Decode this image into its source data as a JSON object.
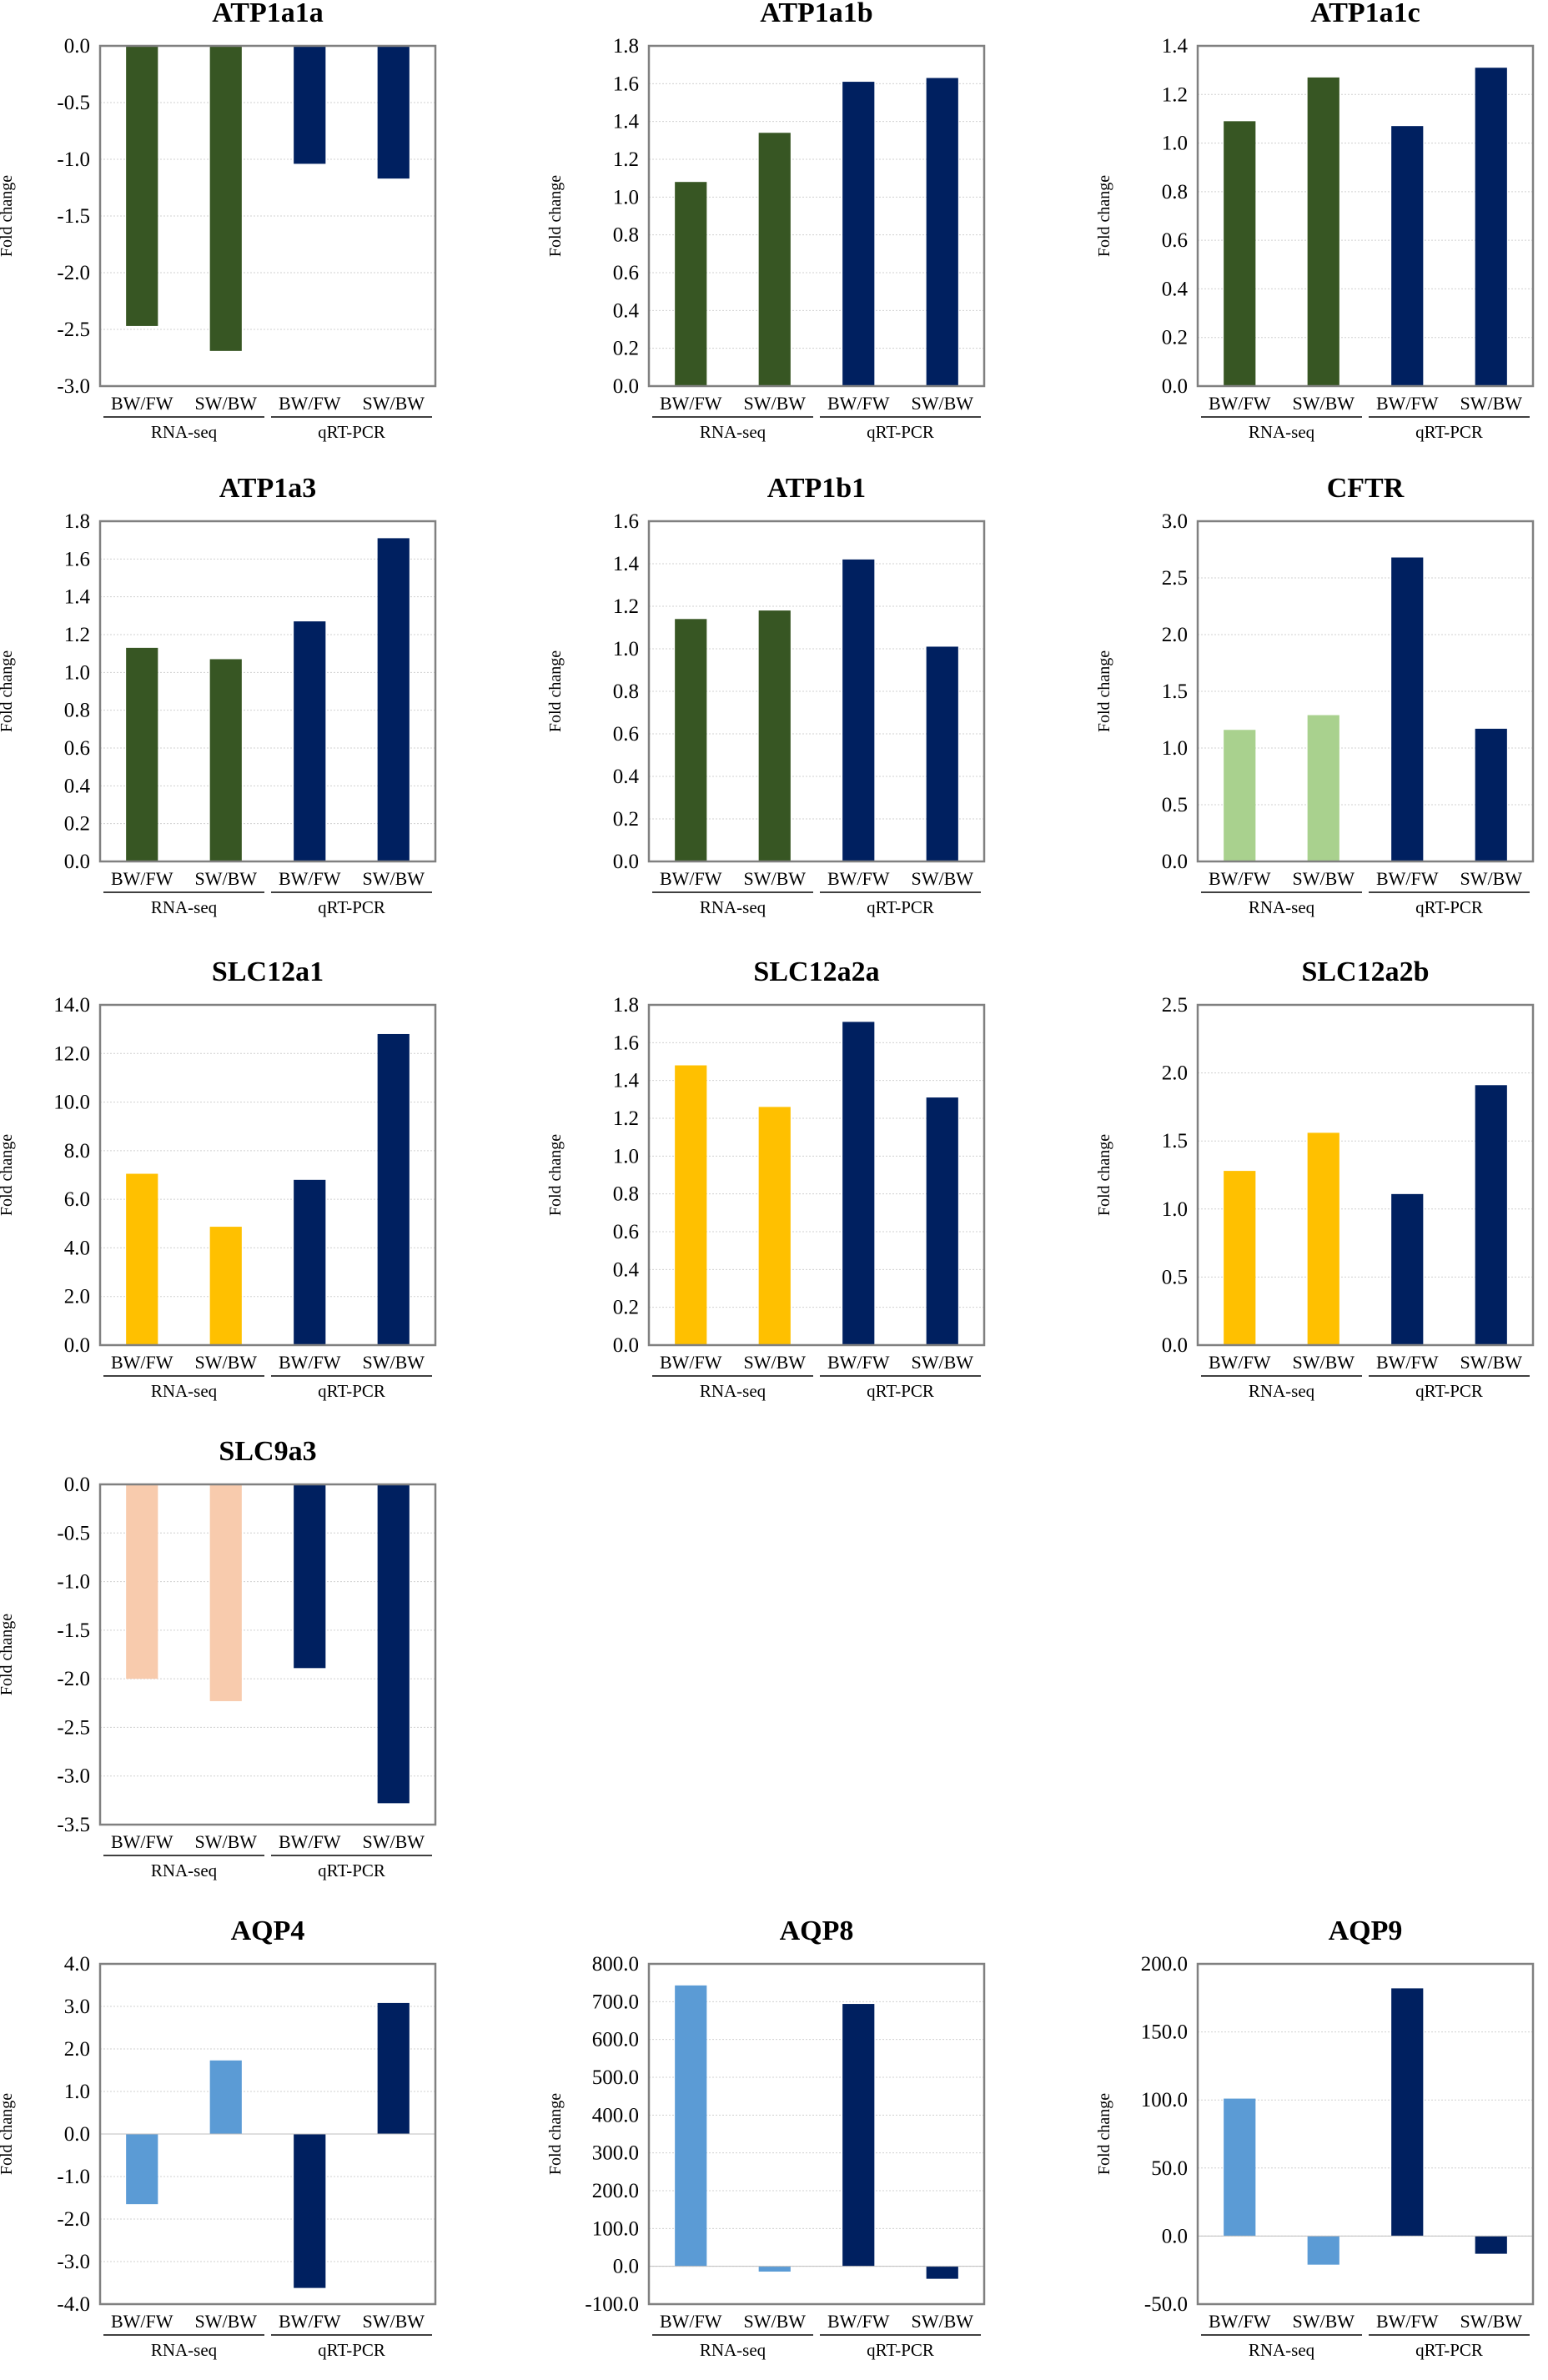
{
  "chart_data": [
    {
      "id": "ATP1a1a",
      "type": "bar",
      "title": "ATP1a1a",
      "ylabel": "Fold change",
      "ylim": [
        -3.0,
        0.0
      ],
      "step": 0.5,
      "decimals": 1,
      "categories": [
        "BW/FW",
        "SW/BW",
        "BW/FW",
        "SW/BW"
      ],
      "groups": [
        "RNA-seq",
        "qRT-PCR"
      ],
      "values": [
        -2.47,
        -2.69,
        -1.04,
        -1.17
      ],
      "colors": [
        "#375623",
        "#375623",
        "#002060",
        "#002060"
      ]
    },
    {
      "id": "ATP1a1b",
      "type": "bar",
      "title": "ATP1a1b",
      "ylabel": "Fold change",
      "ylim": [
        0.0,
        1.8
      ],
      "step": 0.2,
      "decimals": 1,
      "categories": [
        "BW/FW",
        "SW/BW",
        "BW/FW",
        "SW/BW"
      ],
      "groups": [
        "RNA-seq",
        "qRT-PCR"
      ],
      "values": [
        1.08,
        1.34,
        1.61,
        1.63
      ],
      "colors": [
        "#375623",
        "#375623",
        "#002060",
        "#002060"
      ]
    },
    {
      "id": "ATP1a1c",
      "type": "bar",
      "title": "ATP1a1c",
      "ylabel": "Fold change",
      "ylim": [
        0.0,
        1.4
      ],
      "step": 0.2,
      "decimals": 1,
      "categories": [
        "BW/FW",
        "SW/BW",
        "BW/FW",
        "SW/BW"
      ],
      "groups": [
        "RNA-seq",
        "qRT-PCR"
      ],
      "values": [
        1.09,
        1.27,
        1.07,
        1.31
      ],
      "colors": [
        "#375623",
        "#375623",
        "#002060",
        "#002060"
      ]
    },
    {
      "id": "ATP1a3",
      "type": "bar",
      "title": "ATP1a3",
      "ylabel": "Fold change",
      "ylim": [
        0.0,
        1.8
      ],
      "step": 0.2,
      "decimals": 1,
      "categories": [
        "BW/FW",
        "SW/BW",
        "BW/FW",
        "SW/BW"
      ],
      "groups": [
        "RNA-seq",
        "qRT-PCR"
      ],
      "values": [
        1.13,
        1.07,
        1.27,
        1.71
      ],
      "colors": [
        "#375623",
        "#375623",
        "#002060",
        "#002060"
      ]
    },
    {
      "id": "ATP1b1",
      "type": "bar",
      "title": "ATP1b1",
      "ylabel": "Fold change",
      "ylim": [
        0.0,
        1.6
      ],
      "step": 0.2,
      "decimals": 1,
      "categories": [
        "BW/FW",
        "SW/BW",
        "BW/FW",
        "SW/BW"
      ],
      "groups": [
        "RNA-seq",
        "qRT-PCR"
      ],
      "values": [
        1.14,
        1.18,
        1.42,
        1.01
      ],
      "colors": [
        "#375623",
        "#375623",
        "#002060",
        "#002060"
      ]
    },
    {
      "id": "CFTR",
      "type": "bar",
      "title": "CFTR",
      "ylabel": "Fold change",
      "ylim": [
        0.0,
        3.0
      ],
      "step": 0.5,
      "decimals": 1,
      "categories": [
        "BW/FW",
        "SW/BW",
        "BW/FW",
        "SW/BW"
      ],
      "groups": [
        "RNA-seq",
        "qRT-PCR"
      ],
      "values": [
        1.16,
        1.29,
        2.68,
        1.17
      ],
      "colors": [
        "#A9D18E",
        "#A9D18E",
        "#002060",
        "#002060"
      ]
    },
    {
      "id": "SLC12a1",
      "type": "bar",
      "title": "SLC12a1",
      "ylabel": "Fold change",
      "ylim": [
        0.0,
        14.0
      ],
      "step": 2.0,
      "decimals": 1,
      "categories": [
        "BW/FW",
        "SW/BW",
        "BW/FW",
        "SW/BW"
      ],
      "groups": [
        "RNA-seq",
        "qRT-PCR"
      ],
      "values": [
        7.05,
        4.87,
        6.8,
        12.8
      ],
      "colors": [
        "#FFC000",
        "#FFC000",
        "#002060",
        "#002060"
      ]
    },
    {
      "id": "SLC12a2a",
      "type": "bar",
      "title": "SLC12a2a",
      "ylabel": "Fold change",
      "ylim": [
        0.0,
        1.8
      ],
      "step": 0.2,
      "decimals": 1,
      "categories": [
        "BW/FW",
        "SW/BW",
        "BW/FW",
        "SW/BW"
      ],
      "groups": [
        "RNA-seq",
        "qRT-PCR"
      ],
      "values": [
        1.48,
        1.26,
        1.71,
        1.31
      ],
      "colors": [
        "#FFC000",
        "#FFC000",
        "#002060",
        "#002060"
      ]
    },
    {
      "id": "SLC12a2b",
      "type": "bar",
      "title": "SLC12a2b",
      "ylabel": "Fold change",
      "ylim": [
        0.0,
        2.5
      ],
      "step": 0.5,
      "decimals": 1,
      "categories": [
        "BW/FW",
        "SW/BW",
        "BW/FW",
        "SW/BW"
      ],
      "groups": [
        "RNA-seq",
        "qRT-PCR"
      ],
      "values": [
        1.28,
        1.56,
        1.11,
        1.91
      ],
      "colors": [
        "#FFC000",
        "#FFC000",
        "#002060",
        "#002060"
      ]
    },
    {
      "id": "SLC9a3",
      "type": "bar",
      "title": "SLC9a3",
      "ylabel": "Fold change",
      "ylim": [
        -3.5,
        0.0
      ],
      "step": 0.5,
      "decimals": 1,
      "categories": [
        "BW/FW",
        "SW/BW",
        "BW/FW",
        "SW/BW"
      ],
      "groups": [
        "RNA-seq",
        "qRT-PCR"
      ],
      "values": [
        -2.0,
        -2.23,
        -1.89,
        -3.28
      ],
      "colors": [
        "#F8CBAD",
        "#F8CBAD",
        "#002060",
        "#002060"
      ]
    },
    {
      "id": "AQP4",
      "type": "bar",
      "title": "AQP4",
      "ylabel": "Fold change",
      "ylim": [
        -4.0,
        4.0
      ],
      "step": 1.0,
      "decimals": 1,
      "categories": [
        "BW/FW",
        "SW/BW",
        "BW/FW",
        "SW/BW"
      ],
      "groups": [
        "RNA-seq",
        "qRT-PCR"
      ],
      "values": [
        -1.65,
        1.73,
        -3.62,
        3.08
      ],
      "colors": [
        "#5B9BD5",
        "#5B9BD5",
        "#002060",
        "#002060"
      ]
    },
    {
      "id": "AQP8",
      "type": "bar",
      "title": "AQP8",
      "ylabel": "Fold change",
      "ylim": [
        -100.0,
        800.0
      ],
      "step": 100.0,
      "decimals": 1,
      "categories": [
        "BW/FW",
        "SW/BW",
        "BW/FW",
        "SW/BW"
      ],
      "groups": [
        "RNA-seq",
        "qRT-PCR"
      ],
      "values": [
        743,
        -14,
        694,
        -33
      ],
      "colors": [
        "#5B9BD5",
        "#5B9BD5",
        "#002060",
        "#002060"
      ]
    },
    {
      "id": "AQP9",
      "type": "bar",
      "title": "AQP9",
      "ylabel": "Fold change",
      "ylim": [
        -50.0,
        200.0
      ],
      "step": 50.0,
      "decimals": 1,
      "categories": [
        "BW/FW",
        "SW/BW",
        "BW/FW",
        "SW/BW"
      ],
      "groups": [
        "RNA-seq",
        "qRT-PCR"
      ],
      "values": [
        101,
        -21,
        182,
        -13
      ],
      "colors": [
        "#5B9BD5",
        "#5B9BD5",
        "#002060",
        "#002060"
      ]
    }
  ]
}
